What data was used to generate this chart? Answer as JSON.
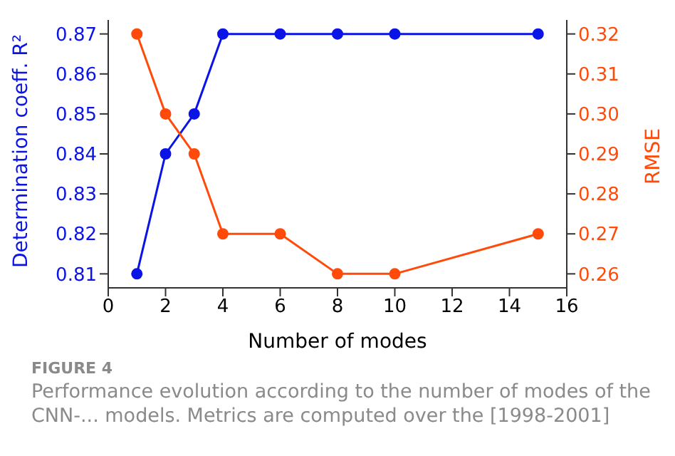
{
  "chart_data": {
    "type": "line",
    "xlabel": "Number of modes",
    "ylabel": "Determination coeff. R²",
    "y2label": "RMSE",
    "x": [
      1,
      2,
      3,
      4,
      6,
      8,
      10,
      15
    ],
    "series": [
      {
        "color": "#0a14e6",
        "values": [
          0.81,
          0.84,
          0.85,
          0.87,
          0.87,
          0.87,
          0.87,
          0.87
        ]
      },
      {
        "color": "#ff4a0a",
        "axis": "y2",
        "values": [
          0.32,
          0.3,
          0.29,
          0.27,
          0.27,
          0.26,
          0.26,
          0.27
        ]
      }
    ],
    "xlim": [
      0,
      16
    ],
    "xticks": [
      0,
      2,
      4,
      6,
      8,
      10,
      12,
      14,
      16
    ],
    "ylim": [
      0.8065,
      0.8735
    ],
    "yticks": [
      0.81,
      0.82,
      0.83,
      0.84,
      0.85,
      0.86,
      0.87
    ],
    "y2lim": [
      0.2565,
      0.3235
    ],
    "y2ticks": [
      0.26,
      0.27,
      0.28,
      0.29,
      {
        "value": 0.3,
        "label": "0.30"
      },
      0.31,
      0.32
    ],
    "marker": "circle",
    "line_style": "solid",
    "grid": false,
    "legend": false,
    "annotations": [
      "FIGURE 4",
      "Performance evolution according to the number of modes of the CNN-... models. Metrics are computed over the [1998-2001]"
    ]
  }
}
